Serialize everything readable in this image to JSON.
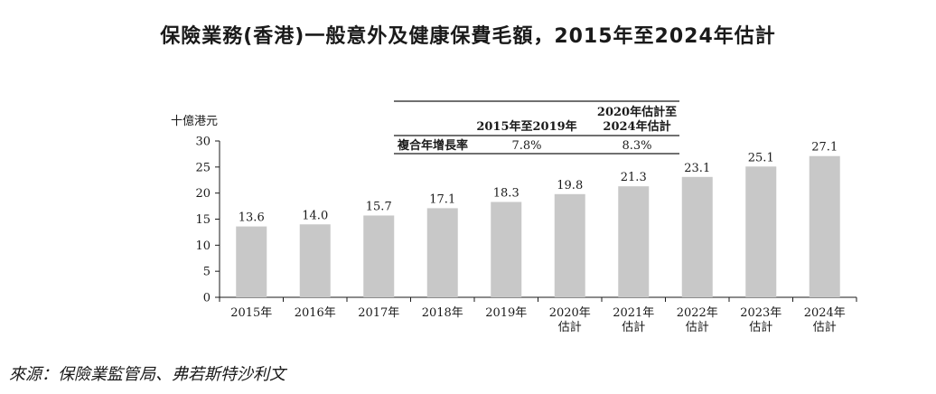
{
  "title": "保險業務(香港)一般意外及健康保費毛額，2015年至2024年估計",
  "source": "來源：保險業監管局、弗若斯特沙利文",
  "chart_data": {
    "type": "bar",
    "ylabel": "十億港元",
    "ylim": [
      0,
      30
    ],
    "yticks": [
      0,
      5,
      10,
      15,
      20,
      25,
      30
    ],
    "categories": [
      [
        "2015年"
      ],
      [
        "2016年"
      ],
      [
        "2017年"
      ],
      [
        "2018年"
      ],
      [
        "2019年"
      ],
      [
        "2020年",
        "估計"
      ],
      [
        "2021年",
        "估計"
      ],
      [
        "2022年",
        "估計"
      ],
      [
        "2023年",
        "估計"
      ],
      [
        "2024年",
        "估計"
      ]
    ],
    "values": [
      13.6,
      14.0,
      15.7,
      17.1,
      18.3,
      19.8,
      21.3,
      23.1,
      25.1,
      27.1
    ],
    "value_labels": [
      "13.6",
      "14.0",
      "15.7",
      "17.1",
      "18.3",
      "19.8",
      "21.3",
      "23.1",
      "25.1",
      "27.1"
    ],
    "bar_color": "#c8c8c8",
    "grid": false,
    "cagr_table": {
      "row_label": "複合年增長率",
      "columns": [
        {
          "header": [
            "2015年至2019年"
          ],
          "value": "7.8%"
        },
        {
          "header": [
            "2020年估計至",
            "2024年估計"
          ],
          "value": "8.3%"
        }
      ]
    }
  }
}
